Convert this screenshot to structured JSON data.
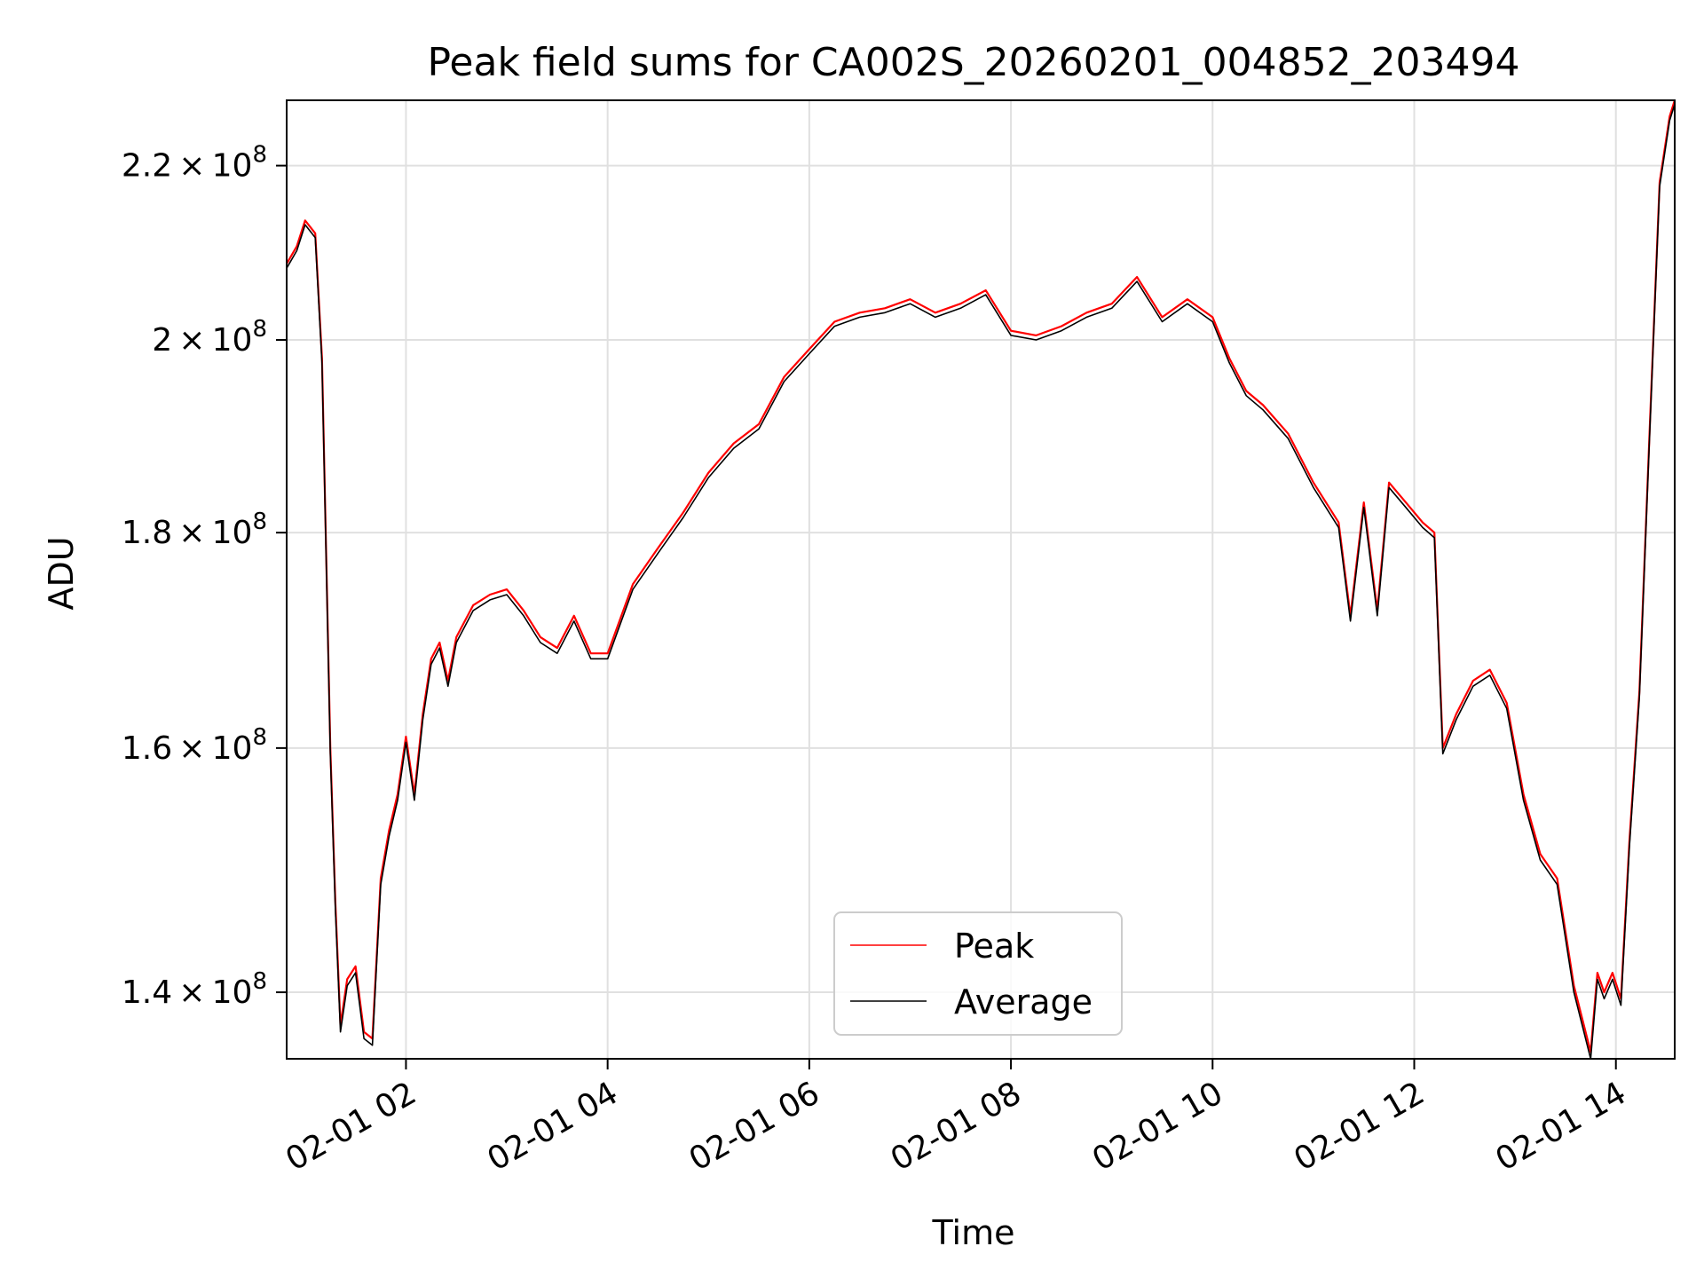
{
  "chart_data": {
    "type": "line",
    "title": "Peak field sums for CA002S_20260201_004852_203494",
    "xlabel": "Time",
    "ylabel": "ADU",
    "y_scale": "log",
    "grid": true,
    "legend_position": "lower-center",
    "colors": {
      "peak": "#ff0000",
      "average": "#000000"
    },
    "xlim": [
      "2026-02-01 00:49",
      "2026-02-01 14:35"
    ],
    "ylim": [
      135000000,
      228000000
    ],
    "x_ticks": [
      {
        "x": "2026-02-01 02:00",
        "label": "02-01 02"
      },
      {
        "x": "2026-02-01 04:00",
        "label": "02-01 04"
      },
      {
        "x": "2026-02-01 06:00",
        "label": "02-01 06"
      },
      {
        "x": "2026-02-01 08:00",
        "label": "02-01 08"
      },
      {
        "x": "2026-02-01 10:00",
        "label": "02-01 10"
      },
      {
        "x": "2026-02-01 12:00",
        "label": "02-01 12"
      },
      {
        "x": "2026-02-01 14:00",
        "label": "02-01 14"
      }
    ],
    "y_ticks": [
      {
        "y": 140000000,
        "mantissa": "1.4",
        "base": "10",
        "exponent": "8"
      },
      {
        "y": 160000000,
        "mantissa": "1.6",
        "base": "10",
        "exponent": "8"
      },
      {
        "y": 180000000,
        "mantissa": "1.8",
        "base": "10",
        "exponent": "8"
      },
      {
        "y": 200000000,
        "mantissa": "2",
        "base": "10",
        "exponent": "8"
      },
      {
        "y": 220000000,
        "mantissa": "2.2",
        "base": "10",
        "exponent": "8"
      }
    ],
    "series": [
      {
        "name": "Peak",
        "x": [
          "2026-02-01 00:49",
          "2026-02-01 00:55",
          "2026-02-01 01:00",
          "2026-02-01 01:06",
          "2026-02-01 01:10",
          "2026-02-01 01:15",
          "2026-02-01 01:18",
          "2026-02-01 01:21",
          "2026-02-01 01:25",
          "2026-02-01 01:30",
          "2026-02-01 01:35",
          "2026-02-01 01:40",
          "2026-02-01 01:45",
          "2026-02-01 01:50",
          "2026-02-01 01:55",
          "2026-02-01 02:00",
          "2026-02-01 02:05",
          "2026-02-01 02:10",
          "2026-02-01 02:15",
          "2026-02-01 02:20",
          "2026-02-01 02:25",
          "2026-02-01 02:30",
          "2026-02-01 02:40",
          "2026-02-01 02:50",
          "2026-02-01 03:00",
          "2026-02-01 03:10",
          "2026-02-01 03:20",
          "2026-02-01 03:30",
          "2026-02-01 03:40",
          "2026-02-01 03:50",
          "2026-02-01 04:00",
          "2026-02-01 04:15",
          "2026-02-01 04:30",
          "2026-02-01 04:45",
          "2026-02-01 05:00",
          "2026-02-01 05:15",
          "2026-02-01 05:30",
          "2026-02-01 05:45",
          "2026-02-01 06:00",
          "2026-02-01 06:15",
          "2026-02-01 06:30",
          "2026-02-01 06:45",
          "2026-02-01 07:00",
          "2026-02-01 07:15",
          "2026-02-01 07:30",
          "2026-02-01 07:45",
          "2026-02-01 08:00",
          "2026-02-01 08:15",
          "2026-02-01 08:30",
          "2026-02-01 08:45",
          "2026-02-01 09:00",
          "2026-02-01 09:15",
          "2026-02-01 09:30",
          "2026-02-01 09:45",
          "2026-02-01 10:00",
          "2026-02-01 10:10",
          "2026-02-01 10:20",
          "2026-02-01 10:30",
          "2026-02-01 10:45",
          "2026-02-01 11:00",
          "2026-02-01 11:15",
          "2026-02-01 11:22",
          "2026-02-01 11:30",
          "2026-02-01 11:38",
          "2026-02-01 11:45",
          "2026-02-01 11:55",
          "2026-02-01 12:05",
          "2026-02-01 12:12",
          "2026-02-01 12:17",
          "2026-02-01 12:25",
          "2026-02-01 12:35",
          "2026-02-01 12:45",
          "2026-02-01 12:55",
          "2026-02-01 13:05",
          "2026-02-01 13:15",
          "2026-02-01 13:25",
          "2026-02-01 13:35",
          "2026-02-01 13:45",
          "2026-02-01 13:49",
          "2026-02-01 13:53",
          "2026-02-01 13:58",
          "2026-02-01 14:03",
          "2026-02-01 14:08",
          "2026-02-01 14:14",
          "2026-02-01 14:20",
          "2026-02-01 14:26",
          "2026-02-01 14:32",
          "2026-02-01 14:35"
        ],
        "values": [
          208500000,
          210500000,
          213500000,
          212000000,
          198000000,
          160000000,
          147000000,
          137500000,
          141000000,
          142000000,
          137000000,
          136500000,
          149000000,
          153000000,
          156000000,
          161000000,
          156000000,
          163000000,
          168000000,
          169500000,
          166000000,
          170000000,
          173000000,
          174000000,
          174500000,
          172500000,
          170000000,
          169000000,
          172000000,
          168500000,
          168500000,
          175000000,
          178500000,
          182000000,
          186000000,
          189000000,
          191000000,
          196000000,
          199000000,
          202000000,
          203000000,
          203500000,
          204500000,
          203000000,
          204000000,
          205500000,
          201000000,
          200500000,
          201500000,
          203000000,
          204000000,
          207000000,
          202500000,
          204500000,
          202500000,
          198000000,
          194500000,
          193000000,
          190000000,
          185000000,
          181000000,
          172000000,
          183000000,
          172500000,
          185000000,
          183000000,
          181000000,
          180000000,
          160000000,
          163000000,
          166000000,
          167000000,
          164000000,
          156000000,
          151000000,
          149000000,
          140500000,
          135500000,
          141500000,
          140000000,
          141500000,
          139500000,
          152000000,
          165000000,
          190000000,
          218000000,
          226000000,
          228000000
        ]
      },
      {
        "name": "Average",
        "x": [
          "2026-02-01 00:49",
          "2026-02-01 00:55",
          "2026-02-01 01:00",
          "2026-02-01 01:06",
          "2026-02-01 01:10",
          "2026-02-01 01:15",
          "2026-02-01 01:18",
          "2026-02-01 01:21",
          "2026-02-01 01:25",
          "2026-02-01 01:30",
          "2026-02-01 01:35",
          "2026-02-01 01:40",
          "2026-02-01 01:45",
          "2026-02-01 01:50",
          "2026-02-01 01:55",
          "2026-02-01 02:00",
          "2026-02-01 02:05",
          "2026-02-01 02:10",
          "2026-02-01 02:15",
          "2026-02-01 02:20",
          "2026-02-01 02:25",
          "2026-02-01 02:30",
          "2026-02-01 02:40",
          "2026-02-01 02:50",
          "2026-02-01 03:00",
          "2026-02-01 03:10",
          "2026-02-01 03:20",
          "2026-02-01 03:30",
          "2026-02-01 03:40",
          "2026-02-01 03:50",
          "2026-02-01 04:00",
          "2026-02-01 04:15",
          "2026-02-01 04:30",
          "2026-02-01 04:45",
          "2026-02-01 05:00",
          "2026-02-01 05:15",
          "2026-02-01 05:30",
          "2026-02-01 05:45",
          "2026-02-01 06:00",
          "2026-02-01 06:15",
          "2026-02-01 06:30",
          "2026-02-01 06:45",
          "2026-02-01 07:00",
          "2026-02-01 07:15",
          "2026-02-01 07:30",
          "2026-02-01 07:45",
          "2026-02-01 08:00",
          "2026-02-01 08:15",
          "2026-02-01 08:30",
          "2026-02-01 08:45",
          "2026-02-01 09:00",
          "2026-02-01 09:15",
          "2026-02-01 09:30",
          "2026-02-01 09:45",
          "2026-02-01 10:00",
          "2026-02-01 10:10",
          "2026-02-01 10:20",
          "2026-02-01 10:30",
          "2026-02-01 10:45",
          "2026-02-01 11:00",
          "2026-02-01 11:15",
          "2026-02-01 11:22",
          "2026-02-01 11:30",
          "2026-02-01 11:38",
          "2026-02-01 11:45",
          "2026-02-01 11:55",
          "2026-02-01 12:05",
          "2026-02-01 12:12",
          "2026-02-01 12:17",
          "2026-02-01 12:25",
          "2026-02-01 12:35",
          "2026-02-01 12:45",
          "2026-02-01 12:55",
          "2026-02-01 13:05",
          "2026-02-01 13:15",
          "2026-02-01 13:25",
          "2026-02-01 13:35",
          "2026-02-01 13:45",
          "2026-02-01 13:49",
          "2026-02-01 13:53",
          "2026-02-01 13:58",
          "2026-02-01 14:03",
          "2026-02-01 14:08",
          "2026-02-01 14:14",
          "2026-02-01 14:20",
          "2026-02-01 14:26",
          "2026-02-01 14:32",
          "2026-02-01 14:35"
        ],
        "values": [
          208000000,
          210000000,
          213000000,
          211500000,
          197500000,
          159500000,
          146500000,
          137000000,
          140500000,
          141500000,
          136500000,
          136000000,
          148500000,
          152500000,
          155500000,
          160500000,
          155500000,
          162500000,
          167500000,
          169000000,
          165500000,
          169500000,
          172500000,
          173500000,
          174000000,
          172000000,
          169500000,
          168500000,
          171500000,
          168000000,
          168000000,
          174500000,
          178000000,
          181500000,
          185500000,
          188500000,
          190500000,
          195500000,
          198500000,
          201500000,
          202500000,
          203000000,
          204000000,
          202500000,
          203500000,
          205000000,
          200500000,
          200000000,
          201000000,
          202500000,
          203500000,
          206500000,
          202000000,
          204000000,
          202000000,
          197500000,
          194000000,
          192500000,
          189500000,
          184500000,
          180500000,
          171500000,
          182500000,
          172000000,
          184500000,
          182500000,
          180500000,
          179500000,
          159500000,
          162500000,
          165500000,
          166500000,
          163500000,
          155500000,
          150500000,
          148500000,
          140000000,
          135000000,
          141000000,
          139500000,
          141000000,
          139000000,
          151500000,
          164500000,
          189500000,
          217500000,
          225500000,
          227500000
        ]
      }
    ]
  }
}
